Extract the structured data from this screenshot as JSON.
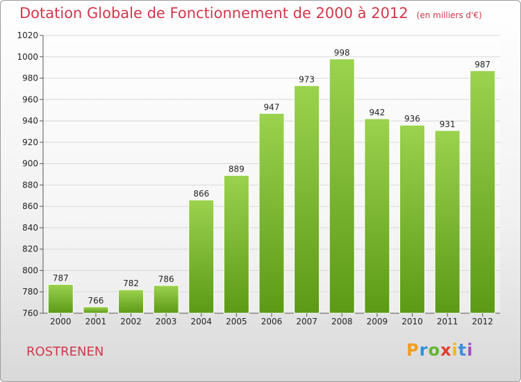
{
  "title": "Dotation Globale de Fonctionnement de 2000 à 2012",
  "subtitle": "(en milliers d'€)",
  "footer": {
    "commune": "ROSTRENEN"
  },
  "logo": {
    "letters": [
      "P",
      "r",
      "o",
      "x",
      "i",
      "t",
      "i"
    ]
  },
  "colors": {
    "title": "#d2374a",
    "bar_top": "#9bd24e",
    "bar_bottom": "#5c9a16",
    "grid": "#d8d8d8"
  },
  "chart_data": {
    "type": "bar",
    "title": "Dotation Globale de Fonctionnement de 2000 à 2012",
    "subtitle": "(en milliers d'€)",
    "categories": [
      "2000",
      "2001",
      "2002",
      "2003",
      "2004",
      "2005",
      "2006",
      "2007",
      "2008",
      "2009",
      "2010",
      "2011",
      "2012"
    ],
    "values": [
      787,
      766,
      782,
      786,
      866,
      889,
      947,
      973,
      998,
      942,
      936,
      931,
      987
    ],
    "ylim": [
      760,
      1020
    ],
    "yticks": [
      760,
      780,
      800,
      820,
      840,
      860,
      880,
      900,
      920,
      940,
      960,
      980,
      1000,
      1020
    ],
    "grid": true,
    "xlabel": "",
    "ylabel": ""
  }
}
